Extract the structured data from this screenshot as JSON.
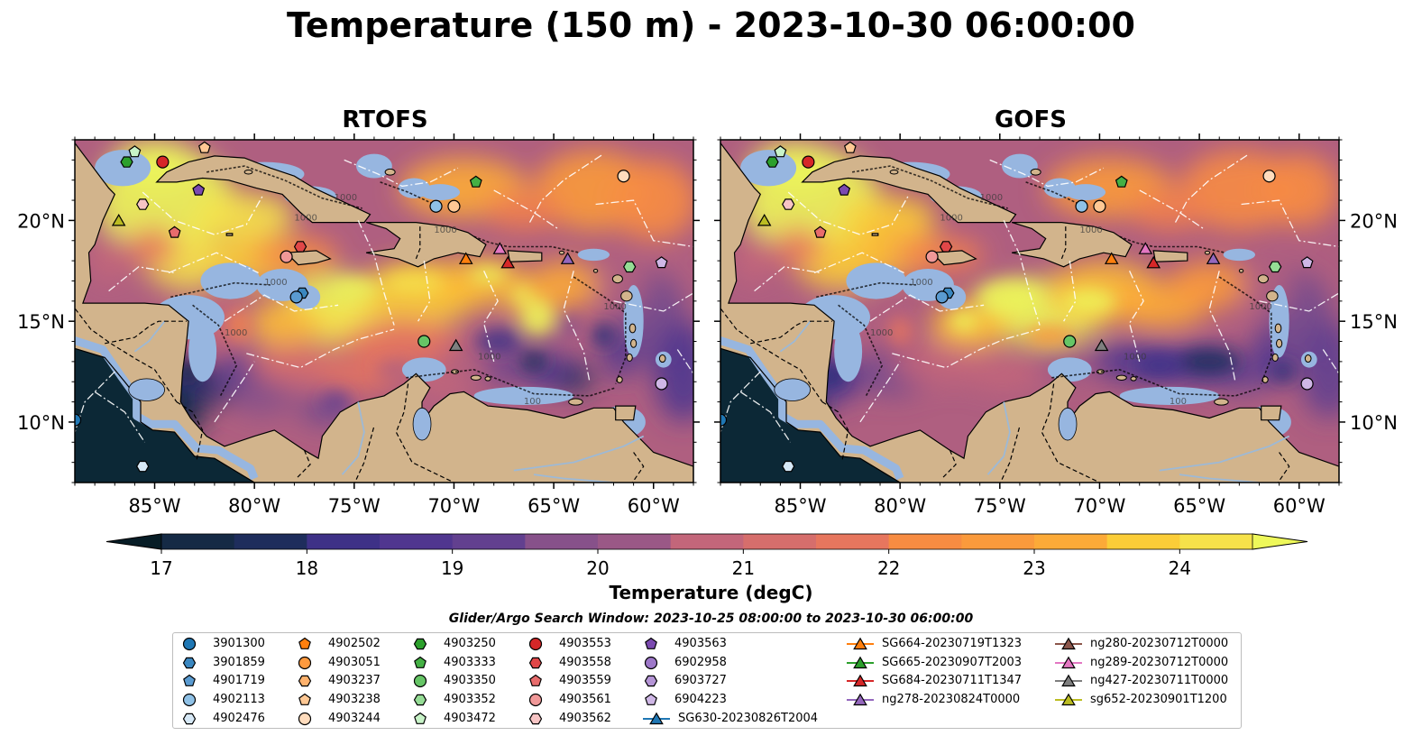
{
  "title": "Temperature (150 m) - 2023-10-30 06:00:00",
  "panels": [
    {
      "title": "RTOFS"
    },
    {
      "title": "GOFS"
    }
  ],
  "axes": {
    "lon_ticks": [
      "85°W",
      "80°W",
      "75°W",
      "70°W",
      "65°W",
      "60°W"
    ],
    "lat_ticks": [
      "20°N",
      "15°N",
      "10°N"
    ]
  },
  "contour_labels": [
    "1000",
    "1000",
    "1000",
    "100",
    "1000",
    "1000",
    "1000",
    "1000"
  ],
  "colorbar": {
    "label": "Temperature (degC)",
    "ticks": [
      "17",
      "18",
      "19",
      "20",
      "21",
      "22",
      "23",
      "24"
    ],
    "min": 16.75,
    "max": 24.75,
    "colors": [
      "#0c2836",
      "#152a45",
      "#1e2d5c",
      "#2c2f78",
      "#3e3187",
      "#50368f",
      "#62408f",
      "#744a8d",
      "#87518a",
      "#9a5886",
      "#af5f80",
      "#c3667a",
      "#d66e6c",
      "#e7765e",
      "#f1804e",
      "#f78c42",
      "#fa9a3c",
      "#fcaa38",
      "#fcbb36",
      "#fbcd38",
      "#f6e24a",
      "#ecf55a"
    ],
    "under_color": "#071d26",
    "over_color": "#eef85a"
  },
  "colors": {
    "land": "#d2b48c",
    "shelf": "#97b6e0",
    "deep_floor": "#0c2836"
  },
  "search_window": "Glider/Argo Search Window: 2023-10-25 08:00:00 to 2023-10-30 06:00:00",
  "legend": {
    "columns": [
      [
        {
          "label": "3901300",
          "marker": "circle",
          "color": "#1f77b4"
        },
        {
          "label": "3901859",
          "marker": "hexagon",
          "color": "#3a87c0"
        },
        {
          "label": "4901719",
          "marker": "pentagon",
          "color": "#5a9bd1"
        },
        {
          "label": "4902113",
          "marker": "circle",
          "color": "#8fc1e6"
        },
        {
          "label": "4902476",
          "marker": "hexagon",
          "color": "#d6e8f6"
        }
      ],
      [
        {
          "label": "4902502",
          "marker": "pentagon",
          "color": "#ff7f0e"
        },
        {
          "label": "4903051",
          "marker": "circle",
          "color": "#ff9a3e"
        },
        {
          "label": "4903237",
          "marker": "hexagon",
          "color": "#ffb26d"
        },
        {
          "label": "4903238",
          "marker": "pentagon",
          "color": "#ffc894"
        },
        {
          "label": "4903244",
          "marker": "circle",
          "color": "#ffdcbd"
        }
      ],
      [
        {
          "label": "4903250",
          "marker": "hexagon",
          "color": "#2ca02c"
        },
        {
          "label": "4903333",
          "marker": "pentagon",
          "color": "#44b044"
        },
        {
          "label": "4903350",
          "marker": "circle",
          "color": "#66c566"
        },
        {
          "label": "4903352",
          "marker": "hexagon",
          "color": "#95dc95"
        },
        {
          "label": "4903472",
          "marker": "pentagon",
          "color": "#c8f3c8"
        }
      ],
      [
        {
          "label": "4903553",
          "marker": "circle",
          "color": "#d62728"
        },
        {
          "label": "4903558",
          "marker": "hexagon",
          "color": "#e04748"
        },
        {
          "label": "4903559",
          "marker": "pentagon",
          "color": "#e86c6c"
        },
        {
          "label": "4903561",
          "marker": "circle",
          "color": "#f09898"
        },
        {
          "label": "4903562",
          "marker": "hexagon",
          "color": "#f7c4c4"
        }
      ],
      [
        {
          "label": "4903563",
          "marker": "pentagon",
          "color": "#7b4ab0"
        },
        {
          "label": "6902958",
          "marker": "circle",
          "color": "#9e78c9"
        },
        {
          "label": "6903727",
          "marker": "hexagon",
          "color": "#b595d6"
        },
        {
          "label": "6904223",
          "marker": "pentagon",
          "color": "#cfb7e6"
        },
        {
          "label": "SG630-20230826T2004",
          "marker": "triangle-line",
          "color": "#1f77b4"
        }
      ],
      [
        {
          "label": "SG664-20230719T1323",
          "marker": "triangle-line",
          "color": "#ff7f0e"
        },
        {
          "label": "SG665-20230907T2003",
          "marker": "triangle-line",
          "color": "#2ca02c"
        },
        {
          "label": "SG684-20230711T1347",
          "marker": "triangle-line",
          "color": "#d62728"
        },
        {
          "label": "ng278-20230824T0000",
          "marker": "triangle-line",
          "color": "#9467bd"
        }
      ],
      [
        {
          "label": "ng280-20230712T0000",
          "marker": "triangle-line",
          "color": "#8c564b"
        },
        {
          "label": "ng289-20230712T0000",
          "marker": "triangle-line",
          "color": "#e377c2"
        },
        {
          "label": "ng427-20230711T0000",
          "marker": "triangle-line",
          "color": "#7f7f7f"
        },
        {
          "label": "sg652-20230901T1200",
          "marker": "triangle-line",
          "color": "#bcbd22"
        }
      ]
    ]
  },
  "observations": [
    {
      "lon": -89.0,
      "lat": 10.1,
      "marker": "circle",
      "color": "#1f77b4"
    },
    {
      "lon": -77.6,
      "lat": 16.4,
      "marker": "hexagon",
      "color": "#3a87c0"
    },
    {
      "lon": -77.9,
      "lat": 16.2,
      "marker": "circle",
      "color": "#5a9bd1"
    },
    {
      "lon": -70.9,
      "lat": 20.7,
      "marker": "circle",
      "color": "#8fc1e6"
    },
    {
      "lon": -85.6,
      "lat": 7.8,
      "marker": "hexagon",
      "color": "#d6e8f6"
    },
    {
      "lon": -70.0,
      "lat": 20.7,
      "marker": "circle",
      "color": "#ffc894"
    },
    {
      "lon": -61.5,
      "lat": 22.2,
      "marker": "circle",
      "color": "#ffdcbd"
    },
    {
      "lon": -82.5,
      "lat": 23.6,
      "marker": "pentagon",
      "color": "#ffc894"
    },
    {
      "lon": -86.4,
      "lat": 22.9,
      "marker": "hexagon",
      "color": "#2ca02c"
    },
    {
      "lon": -68.9,
      "lat": 21.9,
      "marker": "pentagon",
      "color": "#44b044"
    },
    {
      "lon": -71.5,
      "lat": 14.0,
      "marker": "circle",
      "color": "#66c566"
    },
    {
      "lon": -61.2,
      "lat": 17.7,
      "marker": "hexagon",
      "color": "#95dc95"
    },
    {
      "lon": -86.0,
      "lat": 23.4,
      "marker": "pentagon",
      "color": "#c8f3c8"
    },
    {
      "lon": -84.6,
      "lat": 22.9,
      "marker": "circle",
      "color": "#d62728"
    },
    {
      "lon": -77.7,
      "lat": 18.7,
      "marker": "hexagon",
      "color": "#e04748"
    },
    {
      "lon": -84.0,
      "lat": 19.4,
      "marker": "pentagon",
      "color": "#e86c6c"
    },
    {
      "lon": -78.4,
      "lat": 18.2,
      "marker": "circle",
      "color": "#f09898"
    },
    {
      "lon": -85.6,
      "lat": 20.8,
      "marker": "hexagon",
      "color": "#f7c4c4"
    },
    {
      "lon": -82.8,
      "lat": 21.5,
      "marker": "pentagon",
      "color": "#7b4ab0"
    },
    {
      "lon": -59.6,
      "lat": 11.9,
      "marker": "circle",
      "color": "#cfb7e6"
    },
    {
      "lon": -59.6,
      "lat": 17.9,
      "marker": "pentagon",
      "color": "#cfb7e6"
    },
    {
      "lon": -69.4,
      "lat": 18.1,
      "marker": "triangle",
      "color": "#ff7f0e"
    },
    {
      "lon": -86.8,
      "lat": 20.0,
      "marker": "triangle",
      "color": "#bcbd22"
    },
    {
      "lon": -67.3,
      "lat": 17.9,
      "marker": "triangle",
      "color": "#d62728"
    },
    {
      "lon": -64.3,
      "lat": 18.1,
      "marker": "triangle",
      "color": "#9467bd"
    },
    {
      "lon": -67.7,
      "lat": 18.6,
      "marker": "triangle",
      "color": "#e377c2"
    },
    {
      "lon": -69.9,
      "lat": 13.8,
      "marker": "triangle",
      "color": "#7f7f7f"
    }
  ]
}
